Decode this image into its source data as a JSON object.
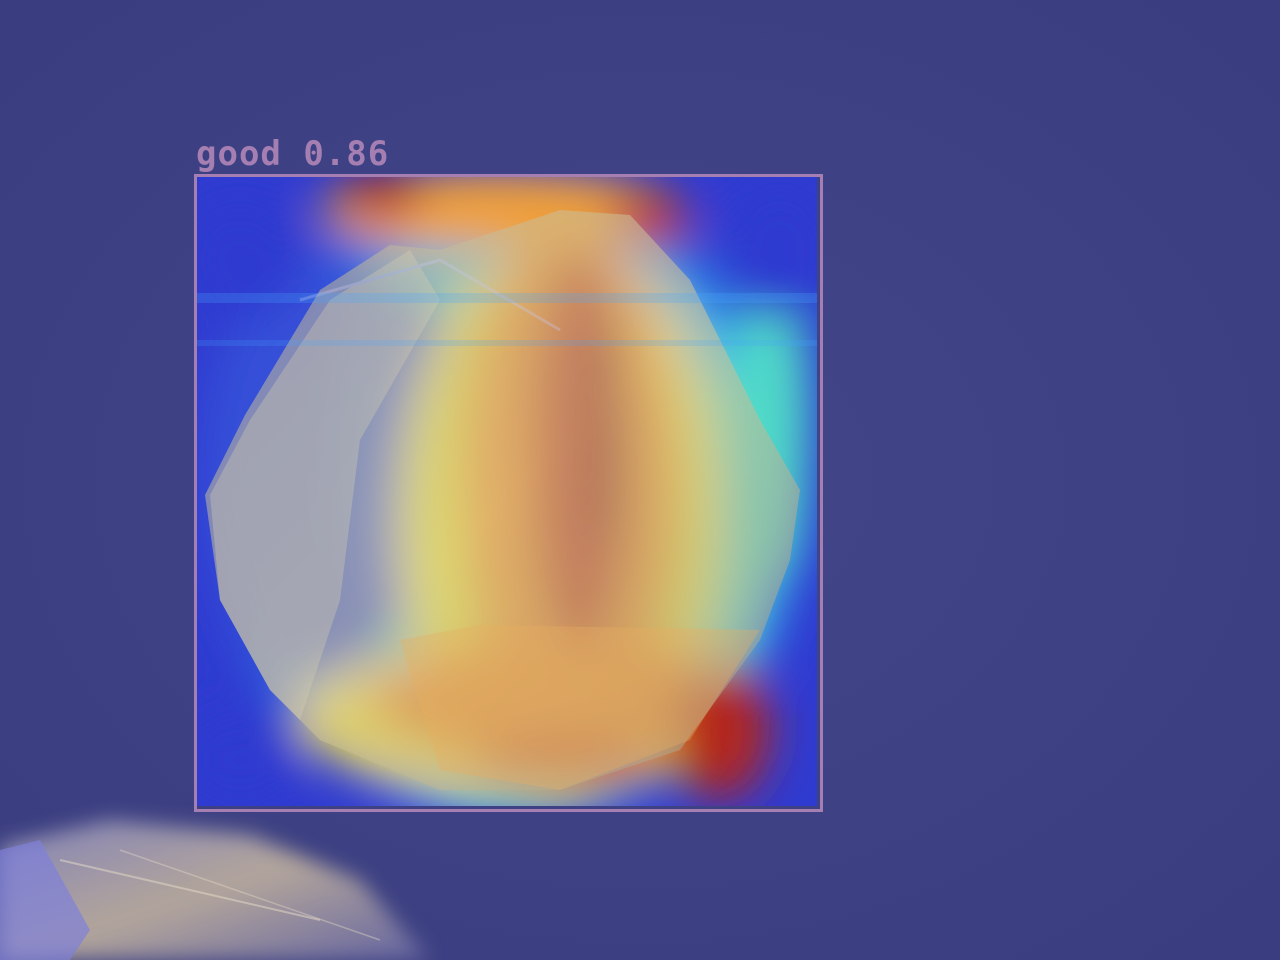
{
  "detection": {
    "label": "good 0.86",
    "class_name": "good",
    "confidence": 0.86,
    "box_color": "#a57fb1"
  },
  "colors": {
    "background": "#3e4185",
    "heat_hot": "#a02018",
    "heat_warm": "#f07a1c",
    "heat_mid": "#f2e23a",
    "heat_cool": "#58e6c0",
    "heat_cold": "#2b3ad8"
  }
}
